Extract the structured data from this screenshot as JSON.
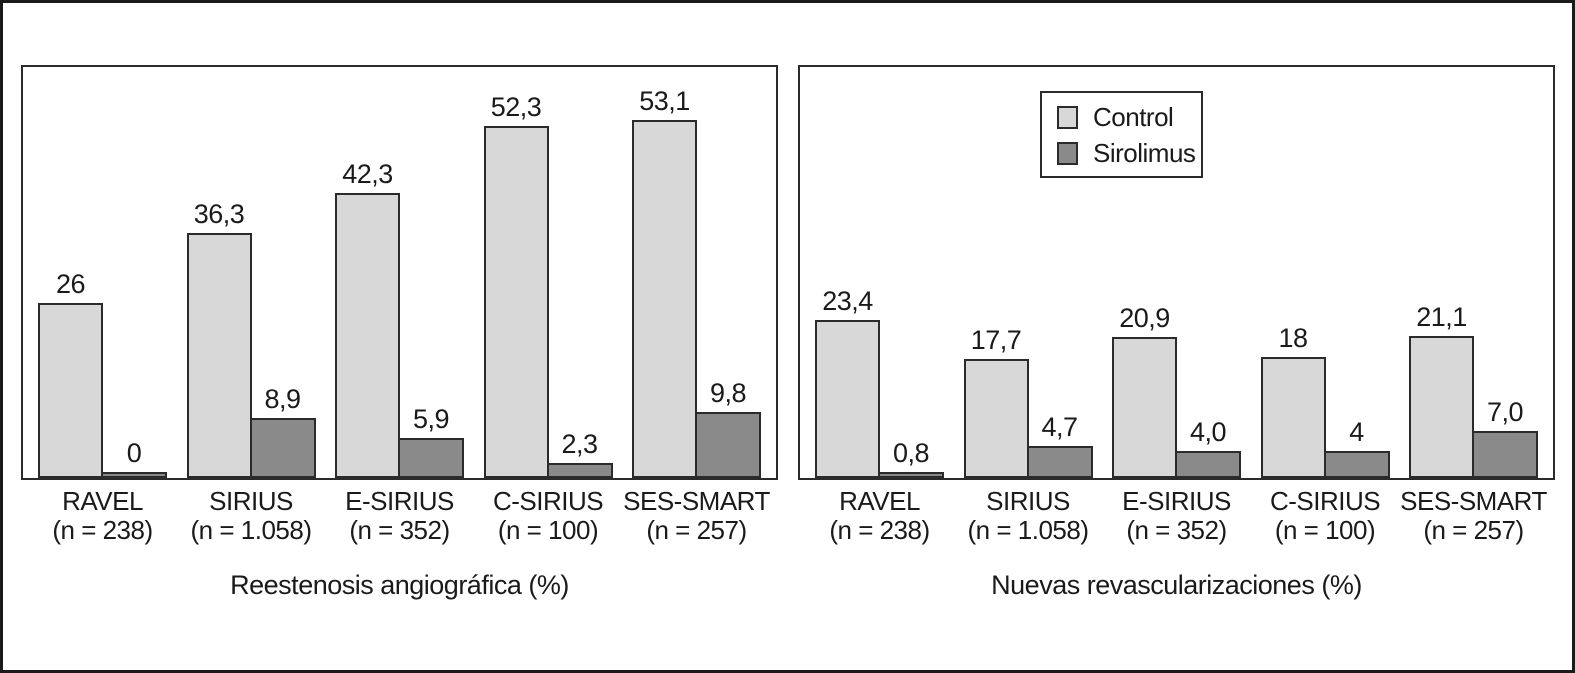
{
  "figure": {
    "background": "#ffffff",
    "outer_border_color": "#1a1a1a"
  },
  "colors": {
    "control_fill": "#d8d8d8",
    "sirolimus_fill": "#8a8a8a",
    "bar_border": "#2b2b2b",
    "panel_border": "#2b2b2b",
    "text": "#1a1a1a"
  },
  "legend": {
    "position": "top-center-right-panel",
    "items": [
      {
        "label": "Control",
        "series": "control"
      },
      {
        "label": "Sirolimus",
        "series": "sirolimus"
      }
    ]
  },
  "chart_data": [
    {
      "type": "bar",
      "title": "Reestenosis angiográfica (%)",
      "categories": [
        "RAVEL",
        "SIRIUS",
        "E-SIRIUS",
        "C-SIRIUS",
        "SES-SMART"
      ],
      "category_sublabels": [
        "(n = 238)",
        "(n = 1.058)",
        "(n = 352)",
        "(n = 100)",
        "(n = 257)"
      ],
      "series": [
        {
          "name": "Control",
          "values": [
            26,
            36.3,
            42.3,
            52.3,
            53.1
          ],
          "value_labels": [
            "26",
            "36,3",
            "42,3",
            "52,3",
            "53,1"
          ]
        },
        {
          "name": "Sirolimus",
          "values": [
            0,
            8.9,
            5.9,
            2.3,
            9.8
          ],
          "value_labels": [
            "0",
            "8,9",
            "5,9",
            "2,3",
            "9,8"
          ]
        }
      ],
      "ylim": [
        0,
        61
      ],
      "grid": false,
      "y_axis_visible": false,
      "value_label_format": "decimal-comma",
      "legend_position": "none"
    },
    {
      "type": "bar",
      "title": "Nuevas revascularizaciones (%)",
      "categories": [
        "RAVEL",
        "SIRIUS",
        "E-SIRIUS",
        "C-SIRIUS",
        "SES-SMART"
      ],
      "category_sublabels": [
        "(n = 238)",
        "(n = 1.058)",
        "(n = 352)",
        "(n = 100)",
        "(n = 257)"
      ],
      "series": [
        {
          "name": "Control",
          "values": [
            23.4,
            17.7,
            20.9,
            18,
            21.1
          ],
          "value_labels": [
            "23,4",
            "17,7",
            "20,9",
            "18",
            "21,1"
          ]
        },
        {
          "name": "Sirolimus",
          "values": [
            0.8,
            4.7,
            4.0,
            4,
            7.0
          ],
          "value_labels": [
            "0,8",
            "4,7",
            "4,0",
            "4",
            "7,0"
          ]
        }
      ],
      "ylim": [
        0,
        61
      ],
      "grid": false,
      "y_axis_visible": false,
      "value_label_format": "decimal-comma",
      "legend_position": "top-center"
    }
  ]
}
